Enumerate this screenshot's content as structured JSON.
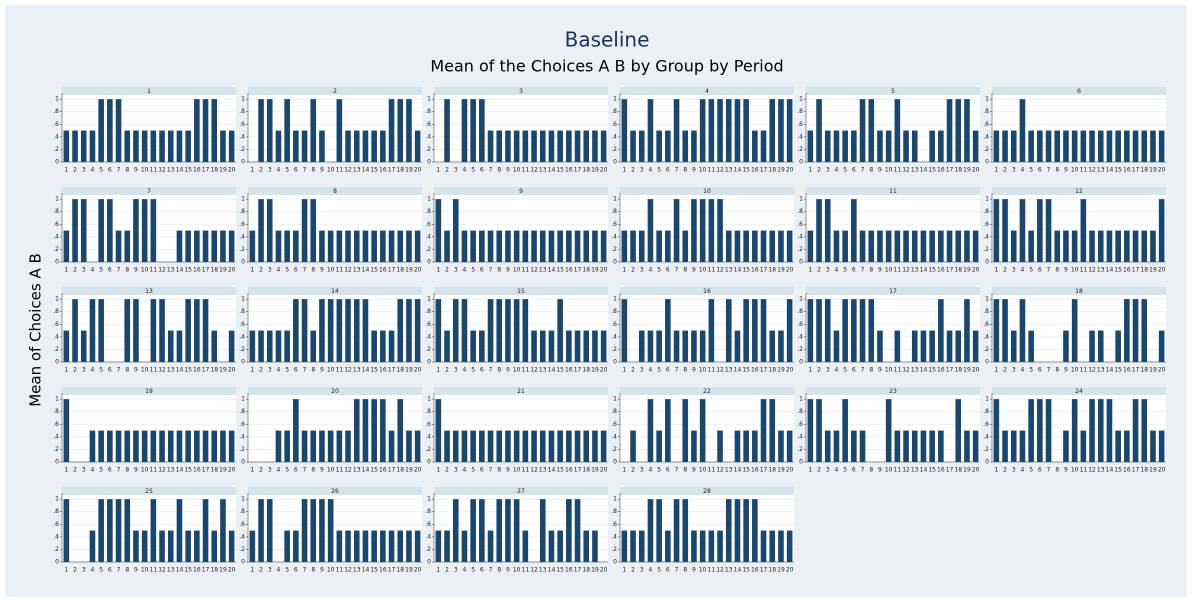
{
  "chart_data": {
    "type": "bar",
    "title": "Baseline",
    "subtitle": "Mean of the Choices A B by Group by Period",
    "y_label": "Mean of Choices A B",
    "categories": [
      1,
      2,
      3,
      4,
      5,
      6,
      7,
      8,
      9,
      10,
      11,
      12,
      13,
      14,
      15,
      16,
      17,
      18,
      19,
      20
    ],
    "ylim": [
      0,
      1.05
    ],
    "yticks": [
      0,
      {
        "value": 0.2,
        "label": ".2"
      },
      {
        "value": 0.4,
        "label": ".4"
      },
      {
        "value": 0.6,
        "label": ".6"
      },
      {
        "value": 0.8,
        "label": ".8"
      },
      1
    ],
    "grid": true,
    "color": "#1a476f",
    "panels": [
      {
        "title": "1",
        "values": [
          0.5,
          0.5,
          0.5,
          0.5,
          1,
          1,
          1,
          0.5,
          0.5,
          0.5,
          0.5,
          0.5,
          0.5,
          0.5,
          0.5,
          1,
          1,
          1,
          0.5,
          0.5
        ]
      },
      {
        "title": "2",
        "values": [
          0,
          1,
          1,
          0.5,
          1,
          0.5,
          0.5,
          1,
          0.5,
          0,
          1,
          0.5,
          0.5,
          0.5,
          0.5,
          0.5,
          1,
          1,
          1,
          0.5
        ]
      },
      {
        "title": "3",
        "values": [
          0,
          1,
          0,
          1,
          1,
          1,
          0.5,
          0.5,
          0.5,
          0.5,
          0.5,
          0.5,
          0.5,
          0.5,
          0.5,
          0.5,
          0.5,
          0.5,
          0.5,
          0.5
        ]
      },
      {
        "title": "4",
        "values": [
          1,
          0.5,
          0.5,
          1,
          0.5,
          0.5,
          1,
          0.5,
          0.5,
          1,
          1,
          1,
          1,
          1,
          1,
          0.5,
          0.5,
          1,
          1,
          1
        ]
      },
      {
        "title": "5",
        "values": [
          0.5,
          1,
          0.5,
          0.5,
          0.5,
          0.5,
          1,
          1,
          0.5,
          0.5,
          1,
          0.5,
          0.5,
          0,
          0.5,
          0.5,
          1,
          1,
          1,
          0.5
        ]
      },
      {
        "title": "6",
        "values": [
          0.5,
          0.5,
          0.5,
          1,
          0.5,
          0.5,
          0.5,
          0.5,
          0.5,
          0.5,
          0.5,
          0.5,
          0.5,
          0.5,
          0.5,
          0.5,
          0.5,
          0.5,
          0.5,
          0.5
        ]
      },
      {
        "title": "7",
        "values": [
          0.5,
          1,
          1,
          0,
          1,
          1,
          0.5,
          0.5,
          1,
          1,
          1,
          0,
          0,
          0.5,
          0.5,
          0.5,
          0.5,
          0.5,
          0.5,
          0.5
        ]
      },
      {
        "title": "8",
        "values": [
          0.5,
          1,
          1,
          0.5,
          0.5,
          0.5,
          1,
          1,
          0.5,
          0.5,
          0.5,
          0.5,
          0.5,
          0.5,
          0.5,
          0.5,
          0.5,
          0.5,
          0.5,
          0.5
        ]
      },
      {
        "title": "9",
        "values": [
          1,
          0.5,
          1,
          0.5,
          0.5,
          0.5,
          0.5,
          0.5,
          0.5,
          0.5,
          0.5,
          0.5,
          0.5,
          0.5,
          0.5,
          0.5,
          0.5,
          0.5,
          0.5,
          0.5
        ]
      },
      {
        "title": "10",
        "values": [
          0.5,
          0.5,
          0.5,
          1,
          0.5,
          0.5,
          1,
          0.5,
          1,
          1,
          1,
          1,
          0.5,
          0.5,
          0.5,
          0.5,
          0.5,
          0.5,
          0.5,
          0.5
        ]
      },
      {
        "title": "11",
        "values": [
          0.5,
          1,
          1,
          0.5,
          0.5,
          1,
          0.5,
          0.5,
          0.5,
          0.5,
          0.5,
          0.5,
          0.5,
          0.5,
          0.5,
          0.5,
          0.5,
          0.5,
          0.5,
          0.5
        ]
      },
      {
        "title": "12",
        "values": [
          1,
          1,
          0.5,
          1,
          0.5,
          1,
          1,
          0.5,
          0.5,
          0.5,
          1,
          0.5,
          0.5,
          0.5,
          0.5,
          0.5,
          0.5,
          0.5,
          0.5,
          1
        ]
      },
      {
        "title": "13",
        "values": [
          0.5,
          1,
          0.5,
          1,
          1,
          0,
          0,
          1,
          1,
          0,
          1,
          1,
          0.5,
          0.5,
          1,
          1,
          1,
          0.5,
          0,
          0.5
        ]
      },
      {
        "title": "14",
        "values": [
          0.5,
          0.5,
          0.5,
          0.5,
          0.5,
          1,
          1,
          0.5,
          1,
          1,
          1,
          1,
          1,
          1,
          0.5,
          0.5,
          0.5,
          1,
          1,
          1
        ]
      },
      {
        "title": "15",
        "values": [
          1,
          0.5,
          1,
          1,
          0.5,
          0.5,
          1,
          1,
          1,
          1,
          1,
          0.5,
          0.5,
          0.5,
          1,
          0.5,
          0.5,
          0.5,
          0.5,
          0.5
        ]
      },
      {
        "title": "16",
        "values": [
          1,
          0,
          0.5,
          0.5,
          0.5,
          1,
          0.5,
          0.5,
          0.5,
          0.5,
          1,
          0,
          1,
          0.5,
          1,
          1,
          1,
          0.5,
          0.5,
          1
        ]
      },
      {
        "title": "17",
        "values": [
          1,
          1,
          1,
          0.5,
          1,
          1,
          1,
          1,
          0.5,
          0,
          0.5,
          0,
          0.5,
          0.5,
          0.5,
          1,
          0.5,
          0.5,
          1,
          0.5
        ]
      },
      {
        "title": "18",
        "values": [
          1,
          1,
          0.5,
          1,
          0.5,
          0,
          0,
          0,
          0.5,
          1,
          0,
          0.5,
          0.5,
          0,
          0.5,
          1,
          1,
          1,
          0,
          0.5
        ]
      },
      {
        "title": "19",
        "values": [
          1,
          0,
          0,
          0.5,
          0.5,
          0.5,
          0.5,
          0.5,
          0.5,
          0.5,
          0.5,
          0.5,
          0.5,
          0.5,
          0.5,
          0.5,
          0.5,
          0.5,
          0.5,
          0.5
        ]
      },
      {
        "title": "20",
        "values": [
          0,
          0,
          0,
          0.5,
          0.5,
          1,
          0.5,
          0.5,
          0.5,
          0.5,
          0.5,
          0.5,
          1,
          1,
          1,
          1,
          0.5,
          1,
          0.5,
          0.5
        ]
      },
      {
        "title": "21",
        "values": [
          1,
          0.5,
          0.5,
          0.5,
          0.5,
          0.5,
          0.5,
          0.5,
          0.5,
          0.5,
          0.5,
          0.5,
          0.5,
          0.5,
          0.5,
          0.5,
          0.5,
          0.5,
          0.5,
          0.5
        ]
      },
      {
        "title": "22",
        "values": [
          0,
          0.5,
          0,
          1,
          0.5,
          1,
          0,
          1,
          0.5,
          1,
          0,
          0.5,
          0,
          0.5,
          0.5,
          0.5,
          1,
          1,
          0.5,
          0.5
        ]
      },
      {
        "title": "23",
        "values": [
          1,
          1,
          0.5,
          0.5,
          1,
          0.5,
          0.5,
          0,
          0,
          1,
          0.5,
          0.5,
          0.5,
          0.5,
          0.5,
          0.5,
          0,
          1,
          0.5,
          0.5
        ]
      },
      {
        "title": "24",
        "values": [
          1,
          0.5,
          0.5,
          0.5,
          1,
          1,
          1,
          0,
          0.5,
          1,
          0.5,
          1,
          1,
          1,
          0.5,
          0.5,
          1,
          1,
          0.5,
          0.5
        ]
      },
      {
        "title": "25",
        "values": [
          1,
          0,
          0,
          0.5,
          1,
          1,
          1,
          1,
          0.5,
          0.5,
          1,
          0.5,
          0.5,
          1,
          0.5,
          0.5,
          1,
          0.5,
          1,
          0.5
        ]
      },
      {
        "title": "26",
        "values": [
          0.5,
          1,
          1,
          0,
          0.5,
          0.5,
          1,
          1,
          1,
          1,
          0.5,
          0.5,
          0.5,
          0.5,
          0.5,
          0.5,
          0.5,
          0.5,
          0.5,
          0.5
        ]
      },
      {
        "title": "27",
        "values": [
          0.5,
          0.5,
          1,
          0.5,
          1,
          1,
          0.5,
          1,
          1,
          1,
          0.5,
          0,
          1,
          0.5,
          0.5,
          1,
          1,
          0.5,
          0.5,
          0
        ]
      },
      {
        "title": "28",
        "values": [
          0.5,
          0.5,
          0.5,
          1,
          1,
          0.5,
          1,
          1,
          0.5,
          0.5,
          0.5,
          0.5,
          1,
          1,
          1,
          1,
          0.5,
          0.5,
          0.5,
          0.5
        ]
      }
    ]
  }
}
